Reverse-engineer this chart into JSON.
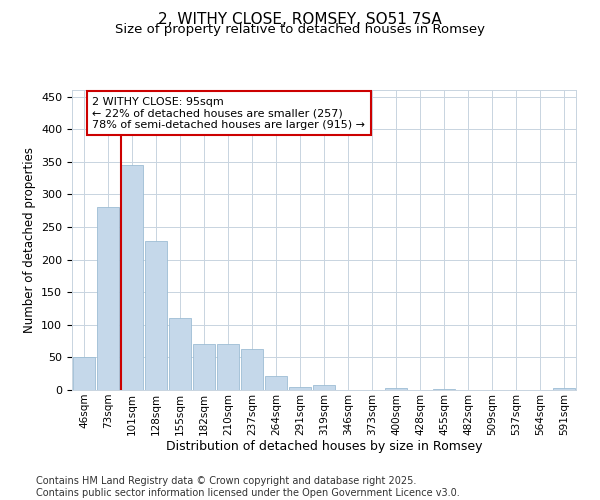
{
  "title": "2, WITHY CLOSE, ROMSEY, SO51 7SA",
  "subtitle": "Size of property relative to detached houses in Romsey",
  "xlabel": "Distribution of detached houses by size in Romsey",
  "ylabel": "Number of detached properties",
  "categories": [
    "46sqm",
    "73sqm",
    "101sqm",
    "128sqm",
    "155sqm",
    "182sqm",
    "210sqm",
    "237sqm",
    "264sqm",
    "291sqm",
    "319sqm",
    "346sqm",
    "373sqm",
    "400sqm",
    "428sqm",
    "455sqm",
    "482sqm",
    "509sqm",
    "537sqm",
    "564sqm",
    "591sqm"
  ],
  "values": [
    50,
    280,
    345,
    228,
    110,
    70,
    70,
    63,
    22,
    5,
    7,
    0,
    0,
    3,
    0,
    2,
    0,
    0,
    0,
    0,
    3
  ],
  "bar_color": "#c5d8ea",
  "bar_edge_color": "#9dbdd4",
  "vline_color": "#cc0000",
  "annotation_text": "2 WITHY CLOSE: 95sqm\n← 22% of detached houses are smaller (257)\n78% of semi-detached houses are larger (915) →",
  "annotation_box_color": "#ffffff",
  "annotation_box_edge_color": "#cc0000",
  "ylim": [
    0,
    460
  ],
  "yticks": [
    0,
    50,
    100,
    150,
    200,
    250,
    300,
    350,
    400,
    450
  ],
  "background_color": "#ffffff",
  "grid_color": "#c8d4e0",
  "footer_text": "Contains HM Land Registry data © Crown copyright and database right 2025.\nContains public sector information licensed under the Open Government Licence v3.0.",
  "title_fontsize": 11,
  "subtitle_fontsize": 9.5,
  "footer_fontsize": 7
}
